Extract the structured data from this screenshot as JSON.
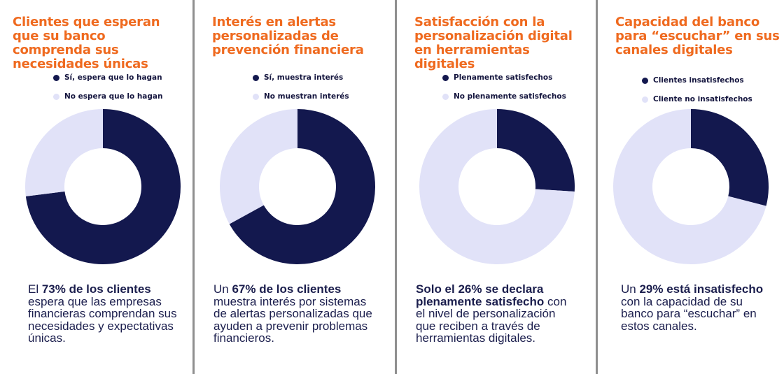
{
  "colors": {
    "dark": "#13184e",
    "light": "#e1e2f8",
    "accent": "#ef6a1f",
    "text": "#1b1e4d"
  },
  "chart_data": [
    {
      "type": "donut",
      "title": "Clientes que esperan que su banco comprenda sus necesidades únicas",
      "legend": [
        "Sí, espera que lo hagan",
        "No espera que lo hagan"
      ],
      "values": [
        73,
        27
      ],
      "caption": {
        "pre": "El ",
        "bold": "73% de los clientes",
        "post": " espera que las empresas financieras comprendan sus necesidades y expectativas únicas."
      }
    },
    {
      "type": "donut",
      "title": "Interés en alertas personalizadas de prevención financiera",
      "legend": [
        "Sí, muestra interés",
        "No muestran interés"
      ],
      "values": [
        67,
        33
      ],
      "caption": {
        "pre": "Un ",
        "bold": "67% de los clientes",
        "post": " muestra interés por sistemas de alertas personalizadas que ayuden a prevenir problemas financieros."
      }
    },
    {
      "type": "donut",
      "title": "Satisfacción con la personalización digital en herramientas digitales",
      "legend": [
        "Plenamente satisfechos",
        "No plenamente satisfechos"
      ],
      "values": [
        26,
        74
      ],
      "caption": {
        "pre": "",
        "bold": "Solo el 26% se declara plenamente satisfecho",
        "post": " con el nivel de personalización que reciben a través de herramientas digitales."
      }
    },
    {
      "type": "donut",
      "title": "Capacidad del banco para “escuchar” en sus canales digitales",
      "legend": [
        "Clientes insatisfechos",
        "Cliente no insatisfechos"
      ],
      "values": [
        29,
        71
      ],
      "caption": {
        "pre": "Un ",
        "bold": "29% está insatisfecho",
        "post": " con la capacidad de su banco para “escuchar” en estos canales."
      }
    }
  ]
}
